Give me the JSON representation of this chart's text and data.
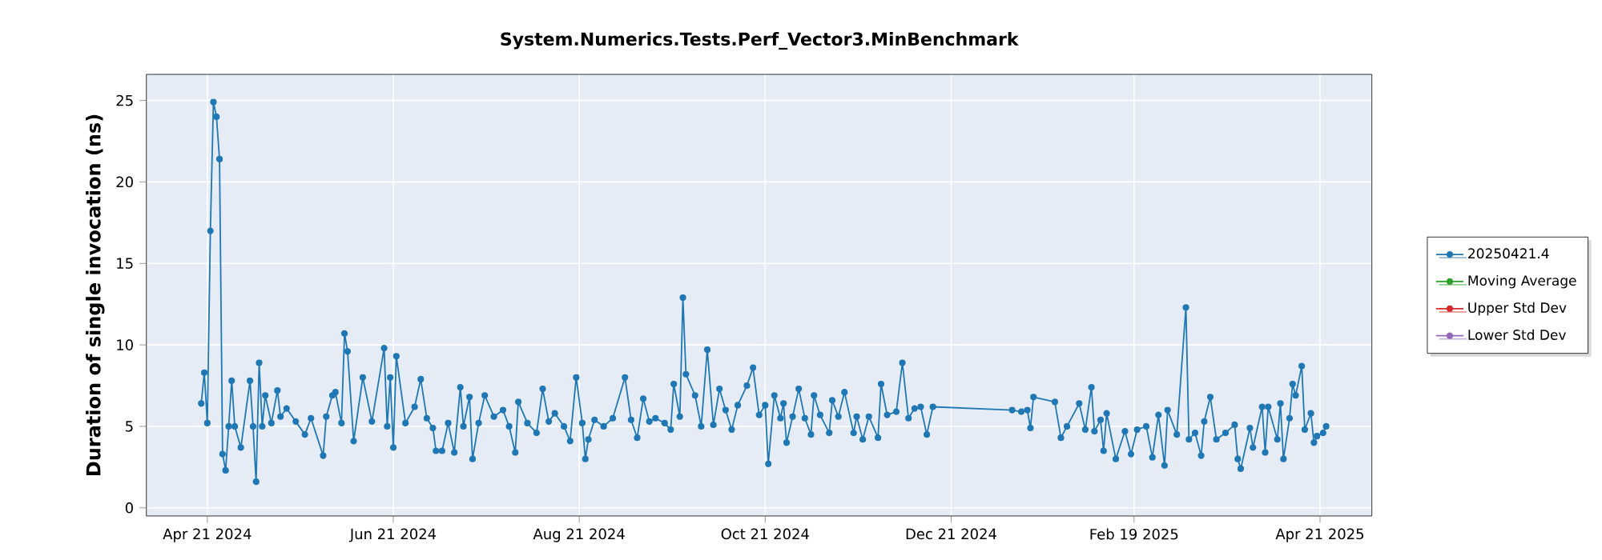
{
  "chart_data": {
    "type": "line",
    "title": "System.Numerics.Tests.Perf_Vector3.MinBenchmark",
    "ylabel": "Duration of single invocation (ns)",
    "xlim": [
      "2024-04-01",
      "2025-05-08"
    ],
    "ylim": [
      -0.5,
      26.6
    ],
    "xticks": [
      {
        "value": "2024-04-21",
        "label": "Apr 21 2024"
      },
      {
        "value": "2024-06-21",
        "label": "Jun 21 2024"
      },
      {
        "value": "2024-08-21",
        "label": "Aug 21 2024"
      },
      {
        "value": "2024-10-21",
        "label": "Oct 21 2024"
      },
      {
        "value": "2024-12-21",
        "label": "Dec 21 2024"
      },
      {
        "value": "2025-02-19",
        "label": "Feb 19 2025"
      },
      {
        "value": "2025-04-21",
        "label": "Apr 21 2025"
      }
    ],
    "yticks": [
      0,
      5,
      10,
      15,
      20,
      25
    ],
    "grid": true,
    "legend": "right",
    "marker": "circle",
    "line_style": "solid",
    "series": [
      {
        "name": "20250421.4",
        "color": "#1f77b4",
        "x": [
          "2024-04-19",
          "2024-04-20",
          "2024-04-21",
          "2024-04-22",
          "2024-04-23",
          "2024-04-24",
          "2024-04-25",
          "2024-04-26",
          "2024-04-27",
          "2024-04-28",
          "2024-04-29",
          "2024-04-30",
          "2024-05-02",
          "2024-05-05",
          "2024-05-06",
          "2024-05-07",
          "2024-05-08",
          "2024-05-09",
          "2024-05-10",
          "2024-05-12",
          "2024-05-14",
          "2024-05-15",
          "2024-05-17",
          "2024-05-20",
          "2024-05-23",
          "2024-05-25",
          "2024-05-29",
          "2024-05-30",
          "2024-06-01",
          "2024-06-02",
          "2024-06-04",
          "2024-06-05",
          "2024-06-06",
          "2024-06-08",
          "2024-06-11",
          "2024-06-14",
          "2024-06-18",
          "2024-06-19",
          "2024-06-20",
          "2024-06-21",
          "2024-06-22",
          "2024-06-25",
          "2024-06-28",
          "2024-06-30",
          "2024-07-02",
          "2024-07-04",
          "2024-07-05",
          "2024-07-07",
          "2024-07-09",
          "2024-07-11",
          "2024-07-13",
          "2024-07-14",
          "2024-07-16",
          "2024-07-17",
          "2024-07-19",
          "2024-07-21",
          "2024-07-24",
          "2024-07-27",
          "2024-07-29",
          "2024-07-31",
          "2024-08-01",
          "2024-08-04",
          "2024-08-07",
          "2024-08-09",
          "2024-08-11",
          "2024-08-13",
          "2024-08-16",
          "2024-08-18",
          "2024-08-20",
          "2024-08-22",
          "2024-08-23",
          "2024-08-24",
          "2024-08-26",
          "2024-08-29",
          "2024-09-01",
          "2024-09-05",
          "2024-09-07",
          "2024-09-09",
          "2024-09-11",
          "2024-09-13",
          "2024-09-15",
          "2024-09-18",
          "2024-09-20",
          "2024-09-21",
          "2024-09-23",
          "2024-09-24",
          "2024-09-25",
          "2024-09-28",
          "2024-09-30",
          "2024-10-02",
          "2024-10-04",
          "2024-10-06",
          "2024-10-08",
          "2024-10-10",
          "2024-10-12",
          "2024-10-15",
          "2024-10-17",
          "2024-10-19",
          "2024-10-21",
          "2024-10-22",
          "2024-10-24",
          "2024-10-26",
          "2024-10-27",
          "2024-10-28",
          "2024-10-30",
          "2024-11-01",
          "2024-11-03",
          "2024-11-05",
          "2024-11-06",
          "2024-11-08",
          "2024-11-11",
          "2024-11-12",
          "2024-11-14",
          "2024-11-16",
          "2024-11-19",
          "2024-11-20",
          "2024-11-22",
          "2024-11-24",
          "2024-11-27",
          "2024-11-28",
          "2024-11-30",
          "2024-12-03",
          "2024-12-05",
          "2024-12-07",
          "2024-12-09",
          "2024-12-11",
          "2024-12-13",
          "2024-12-15",
          "2025-01-10",
          "2025-01-13",
          "2025-01-15",
          "2025-01-16",
          "2025-01-17",
          "2025-01-24",
          "2025-01-26",
          "2025-01-28",
          "2025-02-01",
          "2025-02-03",
          "2025-02-05",
          "2025-02-06",
          "2025-02-08",
          "2025-02-09",
          "2025-02-10",
          "2025-02-13",
          "2025-02-16",
          "2025-02-18",
          "2025-02-20",
          "2025-02-23",
          "2025-02-25",
          "2025-02-27",
          "2025-03-01",
          "2025-03-02",
          "2025-03-05",
          "2025-03-08",
          "2025-03-09",
          "2025-03-11",
          "2025-03-13",
          "2025-03-14",
          "2025-03-16",
          "2025-03-18",
          "2025-03-21",
          "2025-03-24",
          "2025-03-25",
          "2025-03-26",
          "2025-03-29",
          "2025-03-30",
          "2025-04-02",
          "2025-04-03",
          "2025-04-04",
          "2025-04-07",
          "2025-04-08",
          "2025-04-09",
          "2025-04-11",
          "2025-04-12",
          "2025-04-13",
          "2025-04-15",
          "2025-04-16",
          "2025-04-18",
          "2025-04-19",
          "2025-04-20",
          "2025-04-22",
          "2025-04-23"
        ],
        "values": [
          6.4,
          8.3,
          5.2,
          17.0,
          24.9,
          24.0,
          21.4,
          3.3,
          2.3,
          5.0,
          7.8,
          5.0,
          3.7,
          7.8,
          5.0,
          1.6,
          8.9,
          5.0,
          6.9,
          5.2,
          7.2,
          5.6,
          6.1,
          5.3,
          4.5,
          5.5,
          3.2,
          5.6,
          6.9,
          7.1,
          5.2,
          10.7,
          9.6,
          4.1,
          8.0,
          5.3,
          9.8,
          5.0,
          8.0,
          3.7,
          9.3,
          5.2,
          6.2,
          7.9,
          5.5,
          4.9,
          3.5,
          3.5,
          5.2,
          3.4,
          7.4,
          5.0,
          6.8,
          3.0,
          5.2,
          6.9,
          5.6,
          6.0,
          5.0,
          3.4,
          6.5,
          5.2,
          4.6,
          7.3,
          5.3,
          5.8,
          5.0,
          4.1,
          8.0,
          5.2,
          3.0,
          4.2,
          5.4,
          5.0,
          5.5,
          8.0,
          5.4,
          4.3,
          6.7,
          5.3,
          5.5,
          5.2,
          4.8,
          7.6,
          5.6,
          12.9,
          8.2,
          6.9,
          5.0,
          9.7,
          5.1,
          7.3,
          6.0,
          4.8,
          6.3,
          7.5,
          8.6,
          5.7,
          6.3,
          2.7,
          6.9,
          5.5,
          6.4,
          4.0,
          5.6,
          7.3,
          5.5,
          4.5,
          6.9,
          5.7,
          4.6,
          6.6,
          5.6,
          7.1,
          4.6,
          5.6,
          4.2,
          5.6,
          4.3,
          7.6,
          5.7,
          5.9,
          8.9,
          5.5,
          6.1,
          6.2,
          4.5,
          6.2,
          6.0,
          5.9,
          6.0,
          4.9,
          6.8,
          6.5,
          4.3,
          5.0,
          6.4,
          4.8,
          7.4,
          4.7,
          5.4,
          3.5,
          5.8,
          3.0,
          4.7,
          3.3,
          4.8,
          5.0,
          3.1,
          5.7,
          2.6,
          6.0,
          4.5,
          12.3,
          4.2,
          4.6,
          3.2,
          5.3,
          6.8,
          4.2,
          4.6,
          5.1,
          3.0,
          2.4,
          4.9,
          3.7,
          6.2,
          3.4,
          6.2,
          4.2,
          6.4,
          3.0,
          5.5,
          7.6,
          6.9,
          8.7,
          4.8,
          5.8,
          4.0,
          4.4,
          4.6,
          5.0
        ]
      },
      {
        "name": "Moving Average",
        "color": "#2ca02c"
      },
      {
        "name": "Upper Std Dev",
        "color": "#d62728"
      },
      {
        "name": "Lower Std Dev",
        "color": "#9467bd"
      }
    ]
  }
}
